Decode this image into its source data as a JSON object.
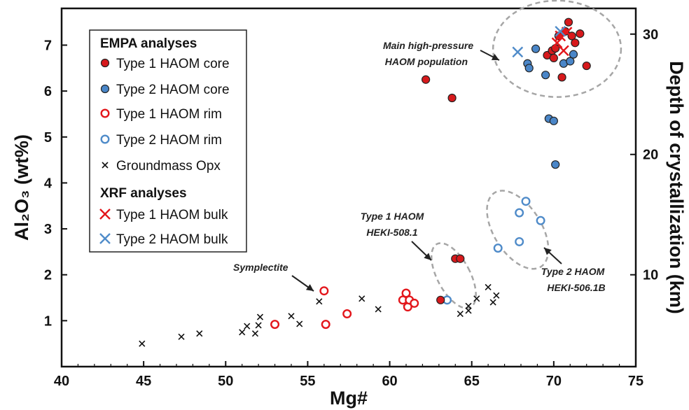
{
  "chart_data": {
    "type": "scatter",
    "xlabel": "Mg#",
    "ylabel_left": "Al₂O₃ (wt%)",
    "ylabel_right": "Depth of crystallization (km)",
    "xlim": [
      40,
      75
    ],
    "ylim": [
      0,
      7.8
    ],
    "x_ticks": [
      40,
      45,
      50,
      55,
      60,
      65,
      70,
      75
    ],
    "y_ticks": [
      1,
      2,
      3,
      4,
      5,
      6,
      7
    ],
    "right_ticks": [
      10,
      20,
      30
    ],
    "right_tick_al2o3": [
      2.0,
      4.62,
      7.24
    ],
    "grid": false,
    "legend_position": "top-left",
    "legend": {
      "heading_empa": "EMPA analyses",
      "heading_xrf": "XRF analyses"
    },
    "colors": {
      "type1": "#e3161b",
      "type2": "#4f8bc9",
      "type1_fill": "#d7191c",
      "type2_fill": "#4a86c8",
      "groundmass": "#111111",
      "ellipse": "#a6a6a6"
    },
    "series": [
      {
        "name": "Type 1 HAOM core",
        "marker": "filled-circle",
        "color": "#d7191c",
        "points": [
          [
            62.2,
            6.25
          ],
          [
            63.8,
            5.85
          ],
          [
            63.1,
            1.45
          ],
          [
            64.0,
            2.35
          ],
          [
            64.3,
            2.35
          ],
          [
            69.6,
            6.78
          ],
          [
            69.9,
            6.88
          ],
          [
            70.0,
            6.72
          ],
          [
            70.1,
            6.93
          ],
          [
            70.3,
            7.2
          ],
          [
            70.5,
            6.3
          ],
          [
            70.7,
            7.3
          ],
          [
            70.9,
            7.5
          ],
          [
            71.1,
            7.2
          ],
          [
            71.3,
            7.05
          ],
          [
            71.6,
            7.25
          ],
          [
            72.0,
            6.55
          ]
        ]
      },
      {
        "name": "Type 2 HAOM core",
        "marker": "filled-circle",
        "color": "#4a86c8",
        "points": [
          [
            68.4,
            6.6
          ],
          [
            68.5,
            6.5
          ],
          [
            68.9,
            6.92
          ],
          [
            69.5,
            6.35
          ],
          [
            69.7,
            5.4
          ],
          [
            70.0,
            5.35
          ],
          [
            70.1,
            4.4
          ],
          [
            70.6,
            6.6
          ],
          [
            71.0,
            6.65
          ],
          [
            71.2,
            6.8
          ]
        ]
      },
      {
        "name": "Type 1 HAOM rim",
        "marker": "open-circle",
        "color": "#e3161b",
        "points": [
          [
            53.0,
            0.92
          ],
          [
            56.0,
            1.65
          ],
          [
            56.1,
            0.92
          ],
          [
            57.4,
            1.15
          ],
          [
            60.8,
            1.45
          ],
          [
            61.0,
            1.6
          ],
          [
            61.1,
            1.3
          ],
          [
            61.2,
            1.45
          ],
          [
            61.5,
            1.38
          ]
        ]
      },
      {
        "name": "Type 2 HAOM rim",
        "marker": "open-circle",
        "color": "#4f8bc9",
        "points": [
          [
            63.5,
            1.45
          ],
          [
            66.6,
            2.58
          ],
          [
            67.9,
            2.72
          ],
          [
            67.9,
            3.35
          ],
          [
            68.3,
            3.6
          ],
          [
            69.2,
            3.18
          ]
        ]
      },
      {
        "name": "Groundmass Opx",
        "marker": "x",
        "color": "#111111",
        "points": [
          [
            44.9,
            0.5
          ],
          [
            47.3,
            0.65
          ],
          [
            48.4,
            0.72
          ],
          [
            51.0,
            0.75
          ],
          [
            51.3,
            0.88
          ],
          [
            51.8,
            0.72
          ],
          [
            52.0,
            0.9
          ],
          [
            52.1,
            1.08
          ],
          [
            54.0,
            1.1
          ],
          [
            54.5,
            0.93
          ],
          [
            55.7,
            1.42
          ],
          [
            58.3,
            1.48
          ],
          [
            59.3,
            1.25
          ],
          [
            61.0,
            1.38
          ],
          [
            64.3,
            1.15
          ],
          [
            64.8,
            1.22
          ],
          [
            64.8,
            1.32
          ],
          [
            65.3,
            1.48
          ],
          [
            66.0,
            1.73
          ],
          [
            66.3,
            1.4
          ],
          [
            66.5,
            1.55
          ]
        ]
      },
      {
        "name": "Type 1 HAOM bulk",
        "marker": "x-large",
        "color": "#e3161b",
        "points": [
          [
            70.2,
            7.05
          ],
          [
            70.4,
            7.2
          ],
          [
            70.8,
            7.28
          ],
          [
            70.6,
            6.88
          ]
        ]
      },
      {
        "name": "Type 2 HAOM bulk",
        "marker": "x-large",
        "color": "#4f8bc9",
        "points": [
          [
            67.8,
            6.85
          ],
          [
            70.4,
            7.3
          ]
        ]
      }
    ],
    "annotations": [
      {
        "lines": [
          "Main high-pressure",
          "HAOM population"
        ]
      },
      {
        "lines": [
          "Type 1 HAOM",
          "HEKI-508.1"
        ]
      },
      {
        "lines": [
          "Type 2 HAOM",
          "HEKI-506.1B"
        ]
      },
      {
        "lines": [
          "Symplectite"
        ]
      }
    ]
  }
}
